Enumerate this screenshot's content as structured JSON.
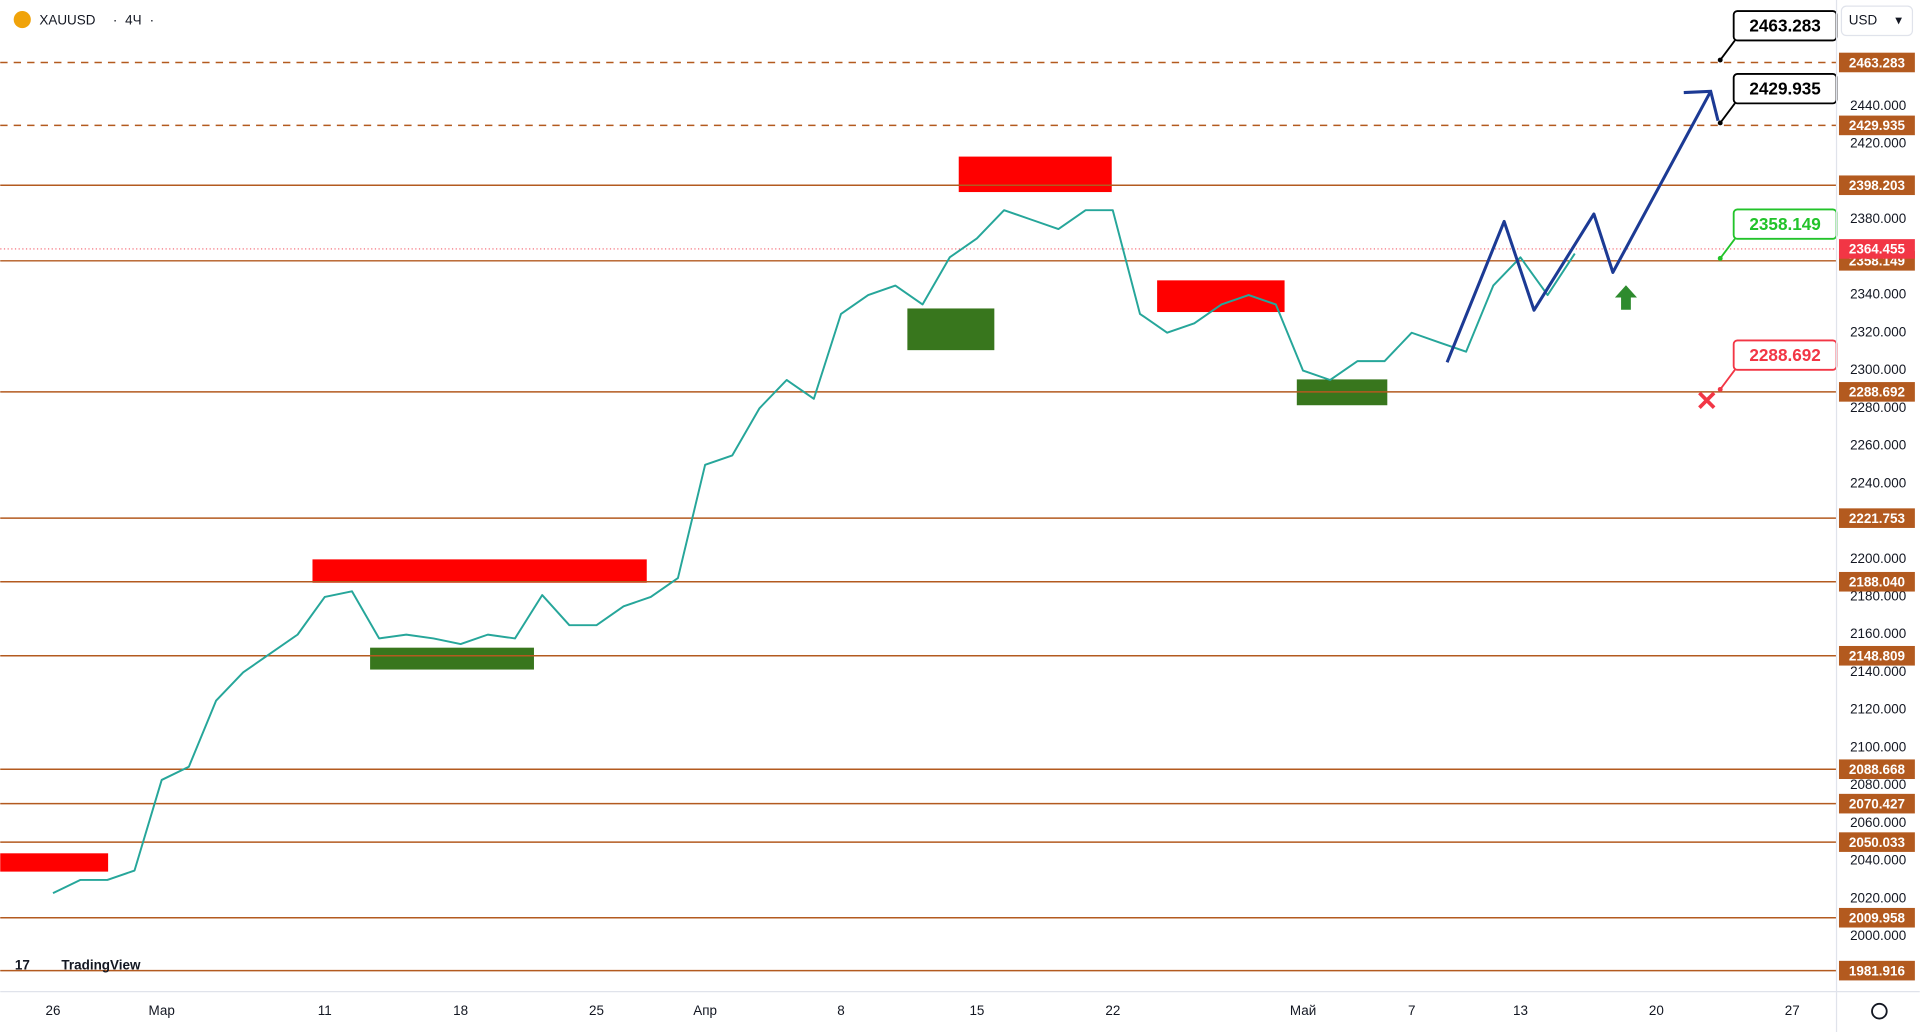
{
  "header": {
    "symbol": "XAUUSD",
    "interval": "4Ч"
  },
  "currency": "USD",
  "brand": "TradingView",
  "chart_data": {
    "type": "line",
    "xlim": [
      -1.94,
      65.63
    ],
    "ylim": [
      1970.8,
      2496.4
    ],
    "xticks": [
      {
        "value": 0,
        "label": "26"
      },
      {
        "value": 4,
        "label": "Мар"
      },
      {
        "value": 10,
        "label": "11"
      },
      {
        "value": 15,
        "label": "18"
      },
      {
        "value": 20,
        "label": "25"
      },
      {
        "value": 24,
        "label": "Апр"
      },
      {
        "value": 29,
        "label": "8"
      },
      {
        "value": 34,
        "label": "15"
      },
      {
        "value": 39,
        "label": "22"
      },
      {
        "value": 46,
        "label": "Май"
      },
      {
        "value": 50,
        "label": "7"
      },
      {
        "value": 54,
        "label": "13"
      },
      {
        "value": 59,
        "label": "20"
      },
      {
        "value": 64,
        "label": "27"
      }
    ],
    "yticks": [
      {
        "value": 2000,
        "label": "2000.000"
      },
      {
        "value": 2020,
        "label": "2020.000"
      },
      {
        "value": 2040,
        "label": "2040.000"
      },
      {
        "value": 2060,
        "label": "2060.000"
      },
      {
        "value": 2080,
        "label": "2080.000"
      },
      {
        "value": 2100,
        "label": "2100.000"
      },
      {
        "value": 2120,
        "label": "2120.000"
      },
      {
        "value": 2140,
        "label": "2140.000"
      },
      {
        "value": 2160,
        "label": "2160.000"
      },
      {
        "value": 2180,
        "label": "2180.000"
      },
      {
        "value": 2200,
        "label": "2200.000"
      },
      {
        "value": 2240,
        "label": "2240.000"
      },
      {
        "value": 2260,
        "label": "2260.000"
      },
      {
        "value": 2280,
        "label": "2280.000"
      },
      {
        "value": 2300,
        "label": "2300.000"
      },
      {
        "value": 2320,
        "label": "2320.000"
      },
      {
        "value": 2340,
        "label": "2340.000"
      },
      {
        "value": 2380,
        "label": "2380.000"
      },
      {
        "value": 2420,
        "label": "2420.000"
      },
      {
        "value": 2440,
        "label": "2440.000"
      }
    ],
    "x": [
      0,
      1,
      2,
      3,
      4,
      5,
      6,
      7,
      8,
      9,
      10,
      11,
      12,
      13,
      14,
      15,
      16,
      17,
      18,
      19,
      20,
      21,
      22,
      23,
      24,
      25,
      26,
      27,
      28,
      29,
      30,
      31,
      32,
      33,
      34,
      35,
      36,
      37,
      38,
      39,
      40,
      41,
      42,
      43,
      44,
      45,
      46,
      47,
      48,
      49,
      50,
      51,
      52,
      53,
      54,
      55,
      56
    ],
    "series": [
      {
        "color": "#26a69a",
        "values": [
          2023,
          2030,
          2030,
          2035,
          2083,
          2090,
          2125,
          2140,
          2150,
          2160,
          2180,
          2183,
          2158,
          2160,
          2158,
          2155,
          2160,
          2158,
          2181,
          2165,
          2165,
          2175,
          2180,
          2190,
          2250,
          2255,
          2280,
          2295,
          2285,
          2330,
          2340,
          2345,
          2335,
          2360,
          2370,
          2385,
          2380,
          2375,
          2385,
          2385,
          2330,
          2320,
          2325,
          2335,
          2340,
          2335,
          2300,
          2295,
          2305,
          2305,
          2320,
          2315,
          2310,
          2345,
          2360,
          2340,
          2362
        ]
      }
    ],
    "projection": {
      "color": "#1c3a94",
      "x": [
        51.3,
        53.4,
        54.5,
        56.7,
        57.4,
        61.0
      ],
      "values": [
        2304.3,
        2379,
        2332,
        2383,
        2352,
        2448
      ]
    },
    "zones": [
      {
        "color": "#ff0000",
        "x": [
          -1.94,
          2.03
        ],
        "y": [
          2044.1,
          2034.4
        ]
      },
      {
        "color": "#ff0000",
        "x": [
          9.55,
          21.85
        ],
        "y": [
          2199.9,
          2187.5
        ]
      },
      {
        "color": "#ff0000",
        "x": [
          33.33,
          38.96
        ],
        "y": [
          2413.4,
          2394.6
        ]
      },
      {
        "color": "#ff0000",
        "x": [
          40.63,
          45.32
        ],
        "y": [
          2347.8,
          2331.0
        ]
      },
      {
        "color": "#38761d",
        "x": [
          11.67,
          17.7
        ],
        "y": [
          2153.1,
          2141.5
        ]
      },
      {
        "color": "#38761d",
        "x": [
          31.44,
          34.64
        ],
        "y": [
          2332.9,
          2310.8
        ]
      },
      {
        "color": "#38761d",
        "x": [
          45.77,
          49.1
        ],
        "y": [
          2295.3,
          2281.6
        ]
      }
    ],
    "level_color": "#b35a1f",
    "levels": [
      {
        "value": 2463.283,
        "label": "2463.283",
        "dashed": true
      },
      {
        "value": 2429.935,
        "label": "2429.935",
        "dashed": true
      },
      {
        "value": 2398.203,
        "label": "2398.203",
        "dashed": false
      },
      {
        "value": 2358.149,
        "label": "2358.149",
        "dashed": false
      },
      {
        "value": 2288.692,
        "label": "2288.692",
        "dashed": false
      },
      {
        "value": 2221.753,
        "label": "2221.753",
        "dashed": false
      },
      {
        "value": 2188.04,
        "label": "2188.040",
        "dashed": false
      },
      {
        "value": 2148.809,
        "label": "2148.809",
        "dashed": false
      },
      {
        "value": 2088.668,
        "label": "2088.668",
        "dashed": false
      },
      {
        "value": 2070.427,
        "label": "2070.427",
        "dashed": false
      },
      {
        "value": 2050.033,
        "label": "2050.033",
        "dashed": false
      },
      {
        "value": 2009.958,
        "label": "2009.958",
        "dashed": false
      },
      {
        "value": 1981.916,
        "label": "1981.916",
        "dashed": false
      }
    ],
    "current_price": {
      "value": 2364.455,
      "label": "2364.455",
      "color": "#f23645"
    },
    "callouts": [
      {
        "x": 61.35,
        "value": 2463.283,
        "label": "2463.283",
        "color": "#000000",
        "offset": -2
      },
      {
        "x": 61.35,
        "value": 2429.935,
        "label": "2429.935",
        "color": "#000000",
        "offset": -2
      },
      {
        "x": 61.35,
        "value": 2358.149,
        "label": "2358.149",
        "color": "#22c32a",
        "offset": -2
      },
      {
        "x": 61.35,
        "value": 2288.692,
        "label": "2288.692",
        "color": "#f23645",
        "offset": -2
      }
    ]
  }
}
